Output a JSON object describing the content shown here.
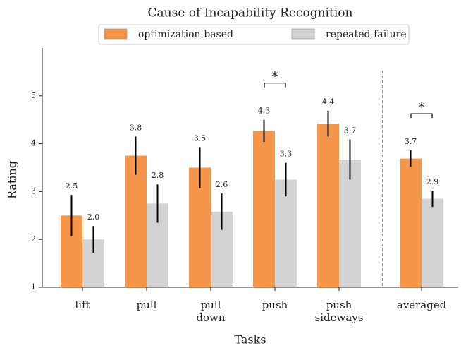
{
  "chart_data": {
    "type": "bar",
    "title": "Cause of Incapability Recognition",
    "x_label": "Tasks",
    "y_label": "Rating",
    "categories": [
      "lift",
      "pull",
      "pull down",
      "push",
      "push sideways",
      "averaged"
    ],
    "series": [
      {
        "name": "optimization-based",
        "color": "#f5964a",
        "values": [
          2.5,
          3.75,
          3.5,
          4.27,
          4.42,
          3.69
        ],
        "errors": [
          0.43,
          0.4,
          0.43,
          0.23,
          0.27,
          0.17
        ],
        "value_labels": [
          "2.5",
          "3.8",
          "3.5",
          "4.3",
          "4.4",
          "3.7"
        ]
      },
      {
        "name": "repeated-failure",
        "color": "#d3d3d3",
        "values": [
          2.0,
          2.75,
          2.58,
          3.25,
          3.67,
          2.85
        ],
        "errors": [
          0.28,
          0.4,
          0.38,
          0.35,
          0.42,
          0.17
        ],
        "value_labels": [
          "2.0",
          "2.8",
          "2.6",
          "3.3",
          "3.7",
          "2.9"
        ]
      }
    ],
    "annotations": [
      {
        "text": "*",
        "category": 3
      },
      {
        "text": "*",
        "category": 5
      }
    ],
    "ylim": [
      1,
      6
    ],
    "yticks": [
      1,
      2,
      3,
      4,
      5
    ],
    "legend": "top"
  }
}
